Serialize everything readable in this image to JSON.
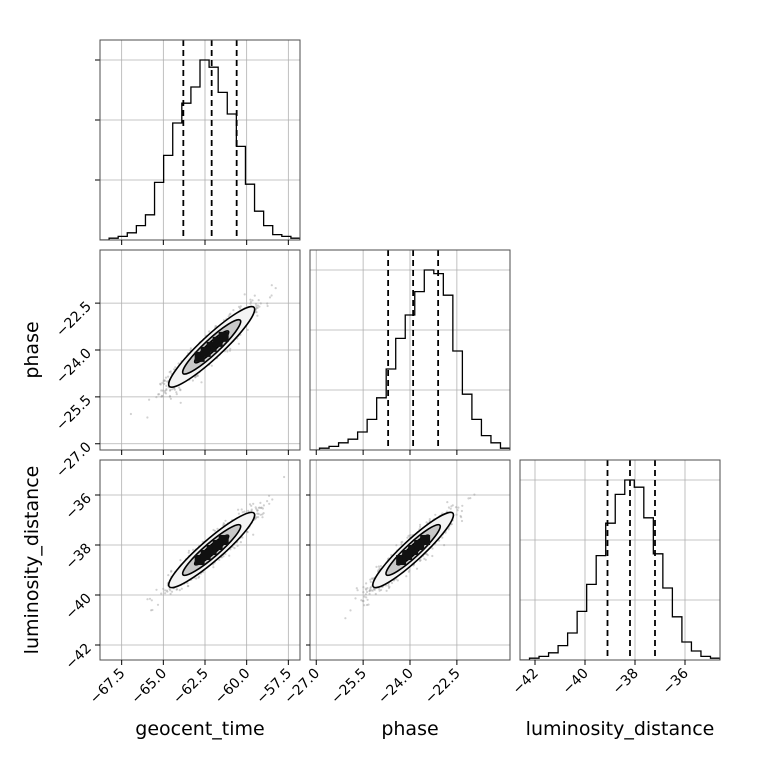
{
  "chart_data": {
    "type": "corner",
    "parameters": [
      "geocent_time",
      "phase",
      "luminosity_distance"
    ],
    "axis_labels": [
      "geocent_time",
      "phase",
      "luminosity_distance"
    ],
    "ranges": {
      "geocent_time": [
        -68.8,
        -56.8
      ],
      "phase": [
        -27.2,
        -20.8
      ],
      "luminosity_distance": [
        -42.6,
        -34.6
      ]
    },
    "ticks": {
      "geocent_time": {
        "values": [
          -67.5,
          -65.0,
          -62.5,
          -60.0,
          -57.5
        ],
        "labels": [
          "−67.5",
          "−65.0",
          "−62.5",
          "−60.0",
          "−57.5"
        ]
      },
      "phase": {
        "values": [
          -27.0,
          -25.5,
          -24.0,
          -22.5
        ],
        "labels": [
          "−27.0",
          "−25.5",
          "−24.0",
          "−22.5"
        ]
      },
      "luminosity_distance": {
        "values": [
          -42,
          -40,
          -38,
          -36
        ],
        "labels": [
          "−42",
          "−40",
          "−38",
          "−36"
        ]
      }
    },
    "quantiles": {
      "geocent_time": [
        -63.8,
        -62.1,
        -60.6
      ],
      "phase": [
        -24.7,
        -23.9,
        -23.1
      ],
      "luminosity_distance": [
        -39.1,
        -38.2,
        -37.2
      ]
    },
    "histograms": {
      "geocent_time": {
        "edges": [
          -68.8,
          -56.8
        ],
        "counts": [
          0,
          1,
          2,
          4,
          8,
          14,
          32,
          47,
          65,
          76,
          85,
          100,
          96,
          82,
          70,
          52,
          31,
          16,
          8,
          3,
          2,
          1
        ]
      },
      "phase": {
        "edges": [
          -27.2,
          -20.8
        ],
        "counts": [
          0,
          1,
          2,
          4,
          6,
          10,
          17,
          29,
          45,
          62,
          75,
          88,
          100,
          98,
          86,
          55,
          31,
          17,
          8,
          4,
          1
        ]
      },
      "luminosity_distance": {
        "edges": [
          -42.6,
          -34.6
        ],
        "counts": [
          0,
          1,
          2,
          4,
          8,
          15,
          27,
          42,
          58,
          76,
          92,
          100,
          96,
          79,
          59,
          40,
          24,
          10,
          5,
          2,
          1
        ]
      }
    },
    "pairs": [
      {
        "x": "geocent_time",
        "y": "phase",
        "center": [
          -62.1,
          -23.9
        ],
        "sigma": [
          1.2,
          0.6
        ],
        "rho": 0.93
      },
      {
        "x": "geocent_time",
        "y": "luminosity_distance",
        "center": [
          -62.1,
          -38.2
        ],
        "sigma": [
          1.2,
          0.7
        ],
        "rho": 0.93
      },
      {
        "x": "phase",
        "y": "luminosity_distance",
        "center": [
          -23.9,
          -38.2
        ],
        "sigma": [
          0.6,
          0.7
        ],
        "rho": 0.93
      }
    ],
    "grid": true,
    "histogram_style": "step",
    "quantile_lines": "dashed"
  }
}
